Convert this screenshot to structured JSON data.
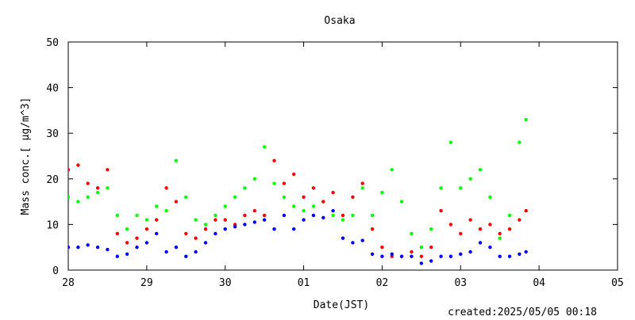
{
  "chart_data": {
    "type": "scatter",
    "title": "Osaka",
    "xlabel": "Date(JST)",
    "ylabel": "Mass conc.[ μg/m^3]",
    "footer": "created:2025/05/05 00:18",
    "xlim": [
      "2025-04-28 00:00",
      "2025-05-05 00:00"
    ],
    "ylim": [
      0,
      50
    ],
    "x_ticks": [
      {
        "date": "2025-04-28",
        "label": "28"
      },
      {
        "date": "2025-04-29",
        "label": "29"
      },
      {
        "date": "2025-04-30",
        "label": "30"
      },
      {
        "date": "2025-05-01",
        "label": "01"
      },
      {
        "date": "2025-05-02",
        "label": "02"
      },
      {
        "date": "2025-05-03",
        "label": "03"
      },
      {
        "date": "2025-05-04",
        "label": "04"
      },
      {
        "date": "2025-05-05",
        "label": "05"
      }
    ],
    "y_ticks": [
      0,
      10,
      20,
      30,
      40,
      50
    ],
    "grid": false,
    "legend": "none",
    "series": [
      {
        "color": "#00ff00",
        "points": [
          [
            "2025-04-28 00:00",
            16
          ],
          [
            "2025-04-28 03:00",
            15
          ],
          [
            "2025-04-28 06:00",
            16
          ],
          [
            "2025-04-28 09:00",
            17
          ],
          [
            "2025-04-28 12:00",
            18
          ],
          [
            "2025-04-28 15:00",
            12
          ],
          [
            "2025-04-28 18:00",
            9
          ],
          [
            "2025-04-28 21:00",
            12
          ],
          [
            "2025-04-29 00:00",
            11
          ],
          [
            "2025-04-29 03:00",
            14
          ],
          [
            "2025-04-29 06:00",
            13
          ],
          [
            "2025-04-29 09:00",
            24
          ],
          [
            "2025-04-29 12:00",
            16
          ],
          [
            "2025-04-29 15:00",
            11
          ],
          [
            "2025-04-29 18:00",
            10
          ],
          [
            "2025-04-29 21:00",
            12
          ],
          [
            "2025-04-30 00:00",
            14
          ],
          [
            "2025-04-30 03:00",
            16
          ],
          [
            "2025-04-30 06:00",
            18
          ],
          [
            "2025-04-30 09:00",
            20
          ],
          [
            "2025-04-30 12:00",
            27
          ],
          [
            "2025-04-30 15:00",
            19
          ],
          [
            "2025-04-30 18:00",
            16
          ],
          [
            "2025-04-30 21:00",
            14
          ],
          [
            "2025-05-01 00:00",
            13
          ],
          [
            "2025-05-01 03:00",
            14
          ],
          [
            "2025-05-01 06:00",
            15
          ],
          [
            "2025-05-01 09:00",
            12
          ],
          [
            "2025-05-01 12:00",
            11
          ],
          [
            "2025-05-01 15:00",
            12
          ],
          [
            "2025-05-01 18:00",
            18
          ],
          [
            "2025-05-01 21:00",
            12
          ],
          [
            "2025-05-02 00:00",
            17
          ],
          [
            "2025-05-02 03:00",
            22
          ],
          [
            "2025-05-02 06:00",
            15
          ],
          [
            "2025-05-02 09:00",
            8
          ],
          [
            "2025-05-02 12:00",
            5
          ],
          [
            "2025-05-02 15:00",
            9
          ],
          [
            "2025-05-02 18:00",
            18
          ],
          [
            "2025-05-02 21:00",
            28
          ],
          [
            "2025-05-03 00:00",
            18
          ],
          [
            "2025-05-03 03:00",
            20
          ],
          [
            "2025-05-03 06:00",
            22
          ],
          [
            "2025-05-03 09:00",
            16
          ],
          [
            "2025-05-03 12:00",
            7
          ],
          [
            "2025-05-03 15:00",
            12
          ],
          [
            "2025-05-03 18:00",
            28
          ],
          [
            "2025-05-03 20:00",
            33
          ]
        ]
      },
      {
        "color": "#ff0000",
        "points": [
          [
            "2025-04-28 00:00",
            22
          ],
          [
            "2025-04-28 03:00",
            23
          ],
          [
            "2025-04-28 06:00",
            19
          ],
          [
            "2025-04-28 09:00",
            18
          ],
          [
            "2025-04-28 12:00",
            22
          ],
          [
            "2025-04-28 15:00",
            8
          ],
          [
            "2025-04-28 18:00",
            6
          ],
          [
            "2025-04-28 21:00",
            7
          ],
          [
            "2025-04-29 00:00",
            9
          ],
          [
            "2025-04-29 03:00",
            11
          ],
          [
            "2025-04-29 06:00",
            18
          ],
          [
            "2025-04-29 09:00",
            15
          ],
          [
            "2025-04-29 12:00",
            8
          ],
          [
            "2025-04-29 15:00",
            7
          ],
          [
            "2025-04-29 18:00",
            9
          ],
          [
            "2025-04-29 21:00",
            11
          ],
          [
            "2025-04-30 00:00",
            11
          ],
          [
            "2025-04-30 03:00",
            10
          ],
          [
            "2025-04-30 06:00",
            12
          ],
          [
            "2025-04-30 09:00",
            13
          ],
          [
            "2025-04-30 12:00",
            12
          ],
          [
            "2025-04-30 15:00",
            24
          ],
          [
            "2025-04-30 18:00",
            19
          ],
          [
            "2025-04-30 21:00",
            21
          ],
          [
            "2025-05-01 00:00",
            16
          ],
          [
            "2025-05-01 03:00",
            18
          ],
          [
            "2025-05-01 06:00",
            15
          ],
          [
            "2025-05-01 09:00",
            17
          ],
          [
            "2025-05-01 12:00",
            12
          ],
          [
            "2025-05-01 15:00",
            16
          ],
          [
            "2025-05-01 18:00",
            19
          ],
          [
            "2025-05-01 21:00",
            9
          ],
          [
            "2025-05-02 00:00",
            5
          ],
          [
            "2025-05-02 03:00",
            3
          ],
          [
            "2025-05-02 06:00",
            3
          ],
          [
            "2025-05-02 09:00",
            4
          ],
          [
            "2025-05-02 12:00",
            3
          ],
          [
            "2025-05-02 15:00",
            5
          ],
          [
            "2025-05-02 18:00",
            13
          ],
          [
            "2025-05-02 21:00",
            10
          ],
          [
            "2025-05-03 00:00",
            8
          ],
          [
            "2025-05-03 03:00",
            11
          ],
          [
            "2025-05-03 06:00",
            9
          ],
          [
            "2025-05-03 09:00",
            10
          ],
          [
            "2025-05-03 12:00",
            8
          ],
          [
            "2025-05-03 15:00",
            9
          ],
          [
            "2025-05-03 18:00",
            11
          ],
          [
            "2025-05-03 20:00",
            13
          ]
        ]
      },
      {
        "color": "#0000ff",
        "points": [
          [
            "2025-04-28 00:00",
            5
          ],
          [
            "2025-04-28 03:00",
            5
          ],
          [
            "2025-04-28 06:00",
            5.5
          ],
          [
            "2025-04-28 09:00",
            5
          ],
          [
            "2025-04-28 12:00",
            4.5
          ],
          [
            "2025-04-28 15:00",
            3
          ],
          [
            "2025-04-28 18:00",
            3.5
          ],
          [
            "2025-04-28 21:00",
            5
          ],
          [
            "2025-04-29 00:00",
            6
          ],
          [
            "2025-04-29 03:00",
            8
          ],
          [
            "2025-04-29 06:00",
            4
          ],
          [
            "2025-04-29 09:00",
            5
          ],
          [
            "2025-04-29 12:00",
            3
          ],
          [
            "2025-04-29 15:00",
            4
          ],
          [
            "2025-04-29 18:00",
            6
          ],
          [
            "2025-04-29 21:00",
            8
          ],
          [
            "2025-04-30 00:00",
            9
          ],
          [
            "2025-04-30 03:00",
            9.5
          ],
          [
            "2025-04-30 06:00",
            10
          ],
          [
            "2025-04-30 09:00",
            10.5
          ],
          [
            "2025-04-30 12:00",
            11
          ],
          [
            "2025-04-30 15:00",
            9
          ],
          [
            "2025-04-30 18:00",
            12
          ],
          [
            "2025-04-30 21:00",
            9
          ],
          [
            "2025-05-01 00:00",
            11
          ],
          [
            "2025-05-01 03:00",
            12
          ],
          [
            "2025-05-01 06:00",
            11.5
          ],
          [
            "2025-05-01 09:00",
            13
          ],
          [
            "2025-05-01 12:00",
            7
          ],
          [
            "2025-05-01 15:00",
            6
          ],
          [
            "2025-05-01 18:00",
            6.5
          ],
          [
            "2025-05-01 21:00",
            3.5
          ],
          [
            "2025-05-02 00:00",
            3
          ],
          [
            "2025-05-02 03:00",
            3.5
          ],
          [
            "2025-05-02 06:00",
            3
          ],
          [
            "2025-05-02 09:00",
            3
          ],
          [
            "2025-05-02 12:00",
            1.5
          ],
          [
            "2025-05-02 15:00",
            2
          ],
          [
            "2025-05-02 18:00",
            3
          ],
          [
            "2025-05-02 21:00",
            3
          ],
          [
            "2025-05-03 00:00",
            3.5
          ],
          [
            "2025-05-03 03:00",
            4
          ],
          [
            "2025-05-03 06:00",
            6
          ],
          [
            "2025-05-03 09:00",
            5
          ],
          [
            "2025-05-03 12:00",
            3
          ],
          [
            "2025-05-03 15:00",
            3
          ],
          [
            "2025-05-03 18:00",
            3.5
          ],
          [
            "2025-05-03 20:00",
            4
          ]
        ]
      }
    ]
  }
}
